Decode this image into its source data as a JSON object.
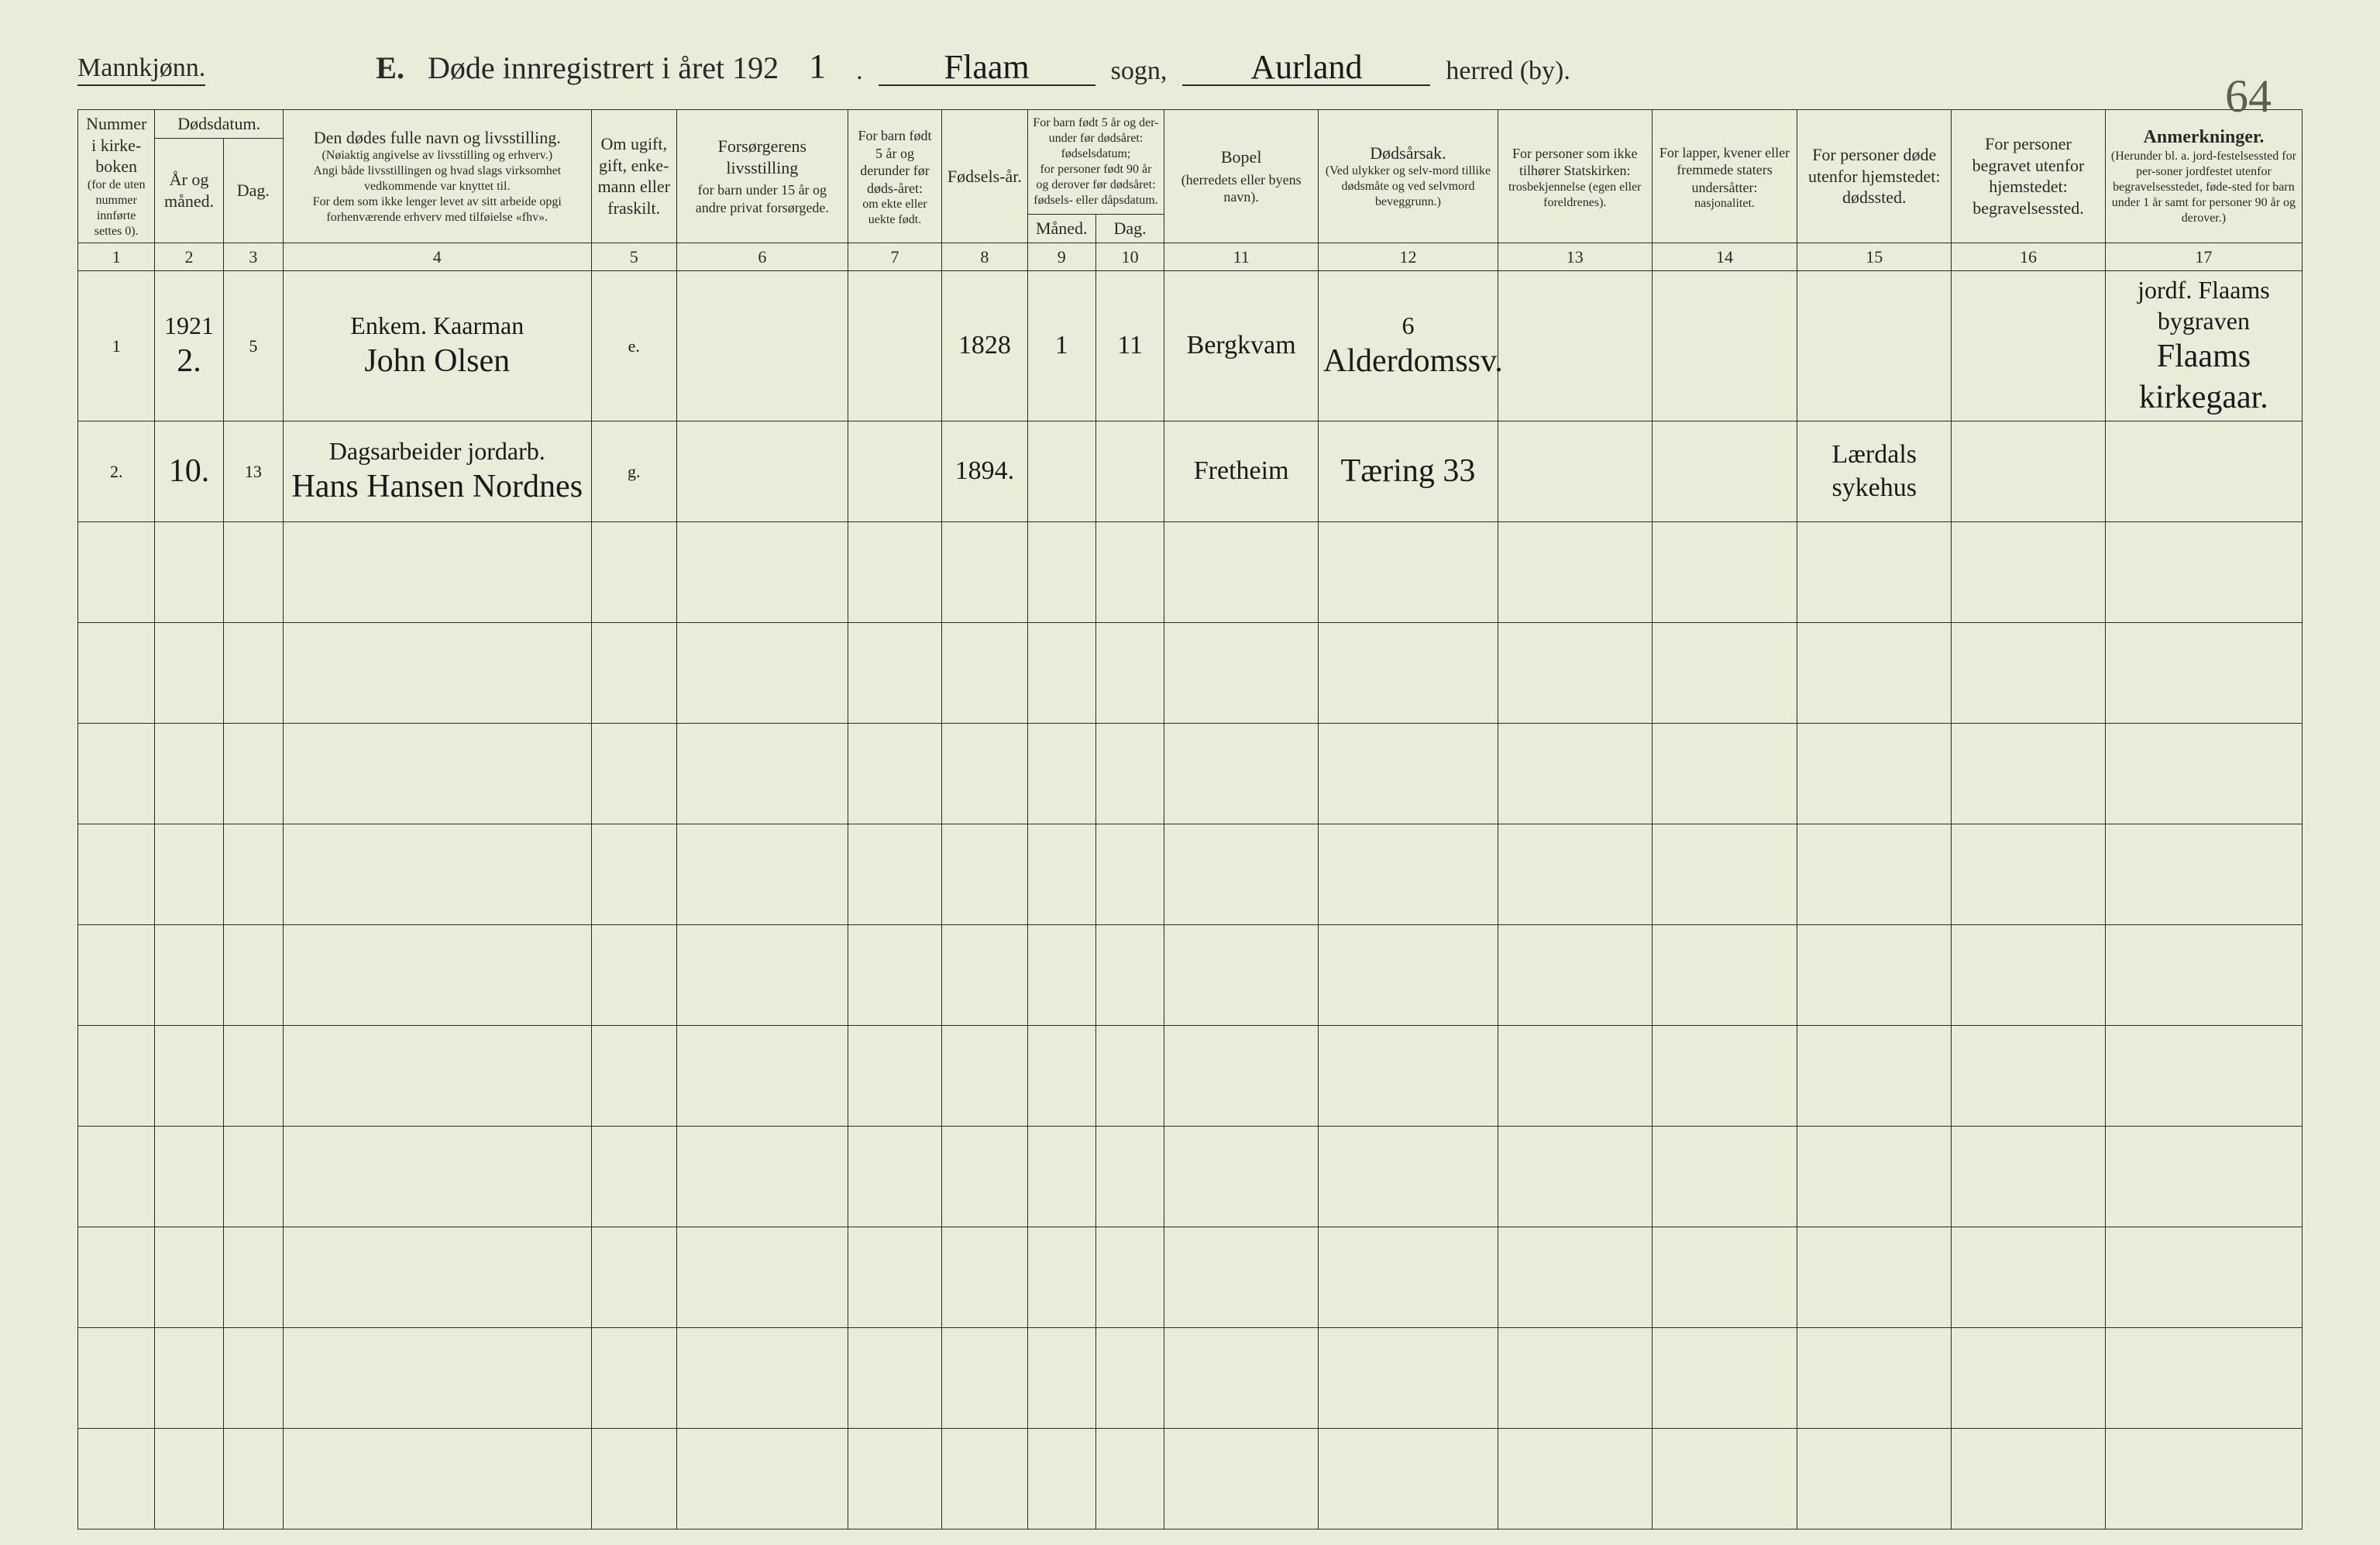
{
  "page": {
    "gender_heading": "Mannkjønn.",
    "title_letter": "E.",
    "title_text": "Døde innregistrert i året 192",
    "year_suffix": "1",
    "period": ".",
    "sogn_value": "Flaam",
    "sogn_label": "sogn,",
    "herred_value": "Aurland",
    "herred_label": "herred (by).",
    "page_number": "64",
    "background_color": "#e8ecd8",
    "text_color": "#2a2a2a",
    "handwriting_color": "#1a1a1a",
    "border_color": "#2a2a2a"
  },
  "headers": {
    "c1": {
      "main": "Nummer i kirke-boken",
      "sub": "(for de uten nummer innførte settes 0)."
    },
    "c2_3_group": "Dødsdatum.",
    "c2": "År og måned.",
    "c3": "Dag.",
    "c4": {
      "main": "Den dødes fulle navn og livsstilling.",
      "sub1": "(Nøiaktig angivelse av livsstilling og erhverv.)",
      "sub2": "Angi både livsstillingen og hvad slags virksomhet vedkommende var knyttet til.",
      "sub3": "For dem som ikke lenger levet av sitt arbeide opgi forhenværende erhverv med tilføielse «fhv»."
    },
    "c5": "Om ugift, gift, enke-mann eller fraskilt.",
    "c6": {
      "main": "Forsørgerens livsstilling",
      "sub": "for barn under 15 år og andre privat forsørgede."
    },
    "c7": {
      "main": "For barn født 5 år og derunder før døds-året:",
      "sub": "om ekte eller uekte født."
    },
    "c8": "Fødsels-år.",
    "c9_10_group": {
      "main": "For barn født 5 år og der-under før dødsåret: fødselsdatum;",
      "sub": "for personer født 90 år og derover før dødsåret: fødsels- eller dåpsdatum."
    },
    "c9": "Måned.",
    "c10": "Dag.",
    "c11": {
      "main": "Bopel",
      "sub": "(herredets eller byens navn)."
    },
    "c12": {
      "main": "Dødsårsak.",
      "sub": "(Ved ulykker og selv-mord tillike dødsmåte og ved selvmord beveggrunn.)"
    },
    "c13": {
      "main": "For personer som ikke tilhører Statskirken:",
      "sub": "trosbekjennelse (egen eller foreldrenes)."
    },
    "c14": {
      "main": "For lapper, kvener eller fremmede staters undersåtter:",
      "sub": "nasjonalitet."
    },
    "c15": "For personer døde utenfor hjemstedet: dødssted.",
    "c16": "For personer begravet utenfor hjemstedet: begravelsessted.",
    "c17": {
      "main": "Anmerkninger.",
      "sub": "(Herunder bl. a. jord-festelsessted for per-soner jordfestet utenfor begravelsesstedet, føde-sted for barn under 1 år samt for personer 90 år og derover.)"
    }
  },
  "colnums": [
    "1",
    "2",
    "3",
    "4",
    "5",
    "6",
    "7",
    "8",
    "9",
    "10",
    "11",
    "12",
    "13",
    "14",
    "15",
    "16",
    "17"
  ],
  "rows": [
    {
      "num": "1",
      "year_month_top": "1921",
      "year_month": "2.",
      "day": "5",
      "name_top": "Enkem. Kaarman",
      "name": "John Olsen",
      "marital": "e.",
      "provider": "",
      "child_legit": "",
      "birth_year": "1828",
      "birth_month": "1",
      "birth_day": "11",
      "residence": "Bergkvam",
      "cause_top": "6",
      "cause": "Alderdomssv.",
      "faith": "",
      "nationality": "",
      "death_place": "",
      "burial_place": "",
      "remarks_top": "jordf. Flaams bygraven",
      "remarks": "Flaams kirkegaar."
    },
    {
      "num": "2.",
      "year_month_top": "",
      "year_month": "10.",
      "day": "13",
      "name_top": "Dagsarbeider jordarb.",
      "name": "Hans Hansen Nordnes",
      "marital": "g.",
      "provider": "",
      "child_legit": "",
      "birth_year": "1894.",
      "birth_month": "",
      "birth_day": "",
      "residence": "Fretheim",
      "cause_top": "",
      "cause": "Tæring 33",
      "faith": "",
      "nationality": "",
      "death_place": "Lærdals sykehus",
      "burial_place": "",
      "remarks_top": "",
      "remarks": ""
    }
  ],
  "empty_row_count": 10
}
